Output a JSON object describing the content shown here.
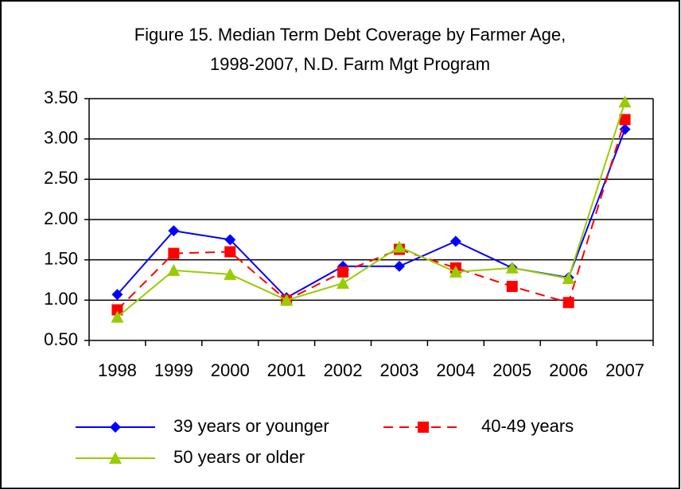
{
  "chart_data": {
    "type": "line",
    "title": [
      "Figure 15. Median Term Debt Coverage by Farmer Age,",
      "1998-2007, N.D. Farm Mgt Program"
    ],
    "categories": [
      "1998",
      "1999",
      "2000",
      "2001",
      "2002",
      "2003",
      "2004",
      "2005",
      "2006",
      "2007"
    ],
    "series": [
      {
        "name": "39 years or younger",
        "color": "#0000ff",
        "marker": "diamond",
        "dashed": false,
        "values": [
          1.07,
          1.86,
          1.75,
          1.03,
          1.42,
          1.42,
          1.73,
          1.4,
          1.28,
          3.12
        ]
      },
      {
        "name": "40-49 years",
        "color": "#ff0000",
        "marker": "square",
        "dashed": true,
        "values": [
          0.88,
          1.58,
          1.6,
          1.0,
          1.35,
          1.63,
          1.4,
          1.17,
          0.97,
          3.24
        ]
      },
      {
        "name": "50 years or older",
        "color": "#99cc00",
        "marker": "triangle",
        "dashed": false,
        "values": [
          0.79,
          1.37,
          1.32,
          1.0,
          1.21,
          1.66,
          1.35,
          1.4,
          1.27,
          3.46
        ]
      }
    ],
    "ylim": [
      0.5,
      3.5
    ],
    "yticks": [
      {
        "value": 0.5,
        "label": "0.50"
      },
      {
        "value": 1,
        "label": "1.00"
      },
      {
        "value": 1.5,
        "label": "1.50"
      },
      {
        "value": 2,
        "label": "2.00"
      },
      {
        "value": 2.5,
        "label": "2.50"
      },
      {
        "value": 3,
        "label": "3.00"
      },
      {
        "value": 3.5,
        "label": "3.50"
      }
    ],
    "grid": true
  }
}
